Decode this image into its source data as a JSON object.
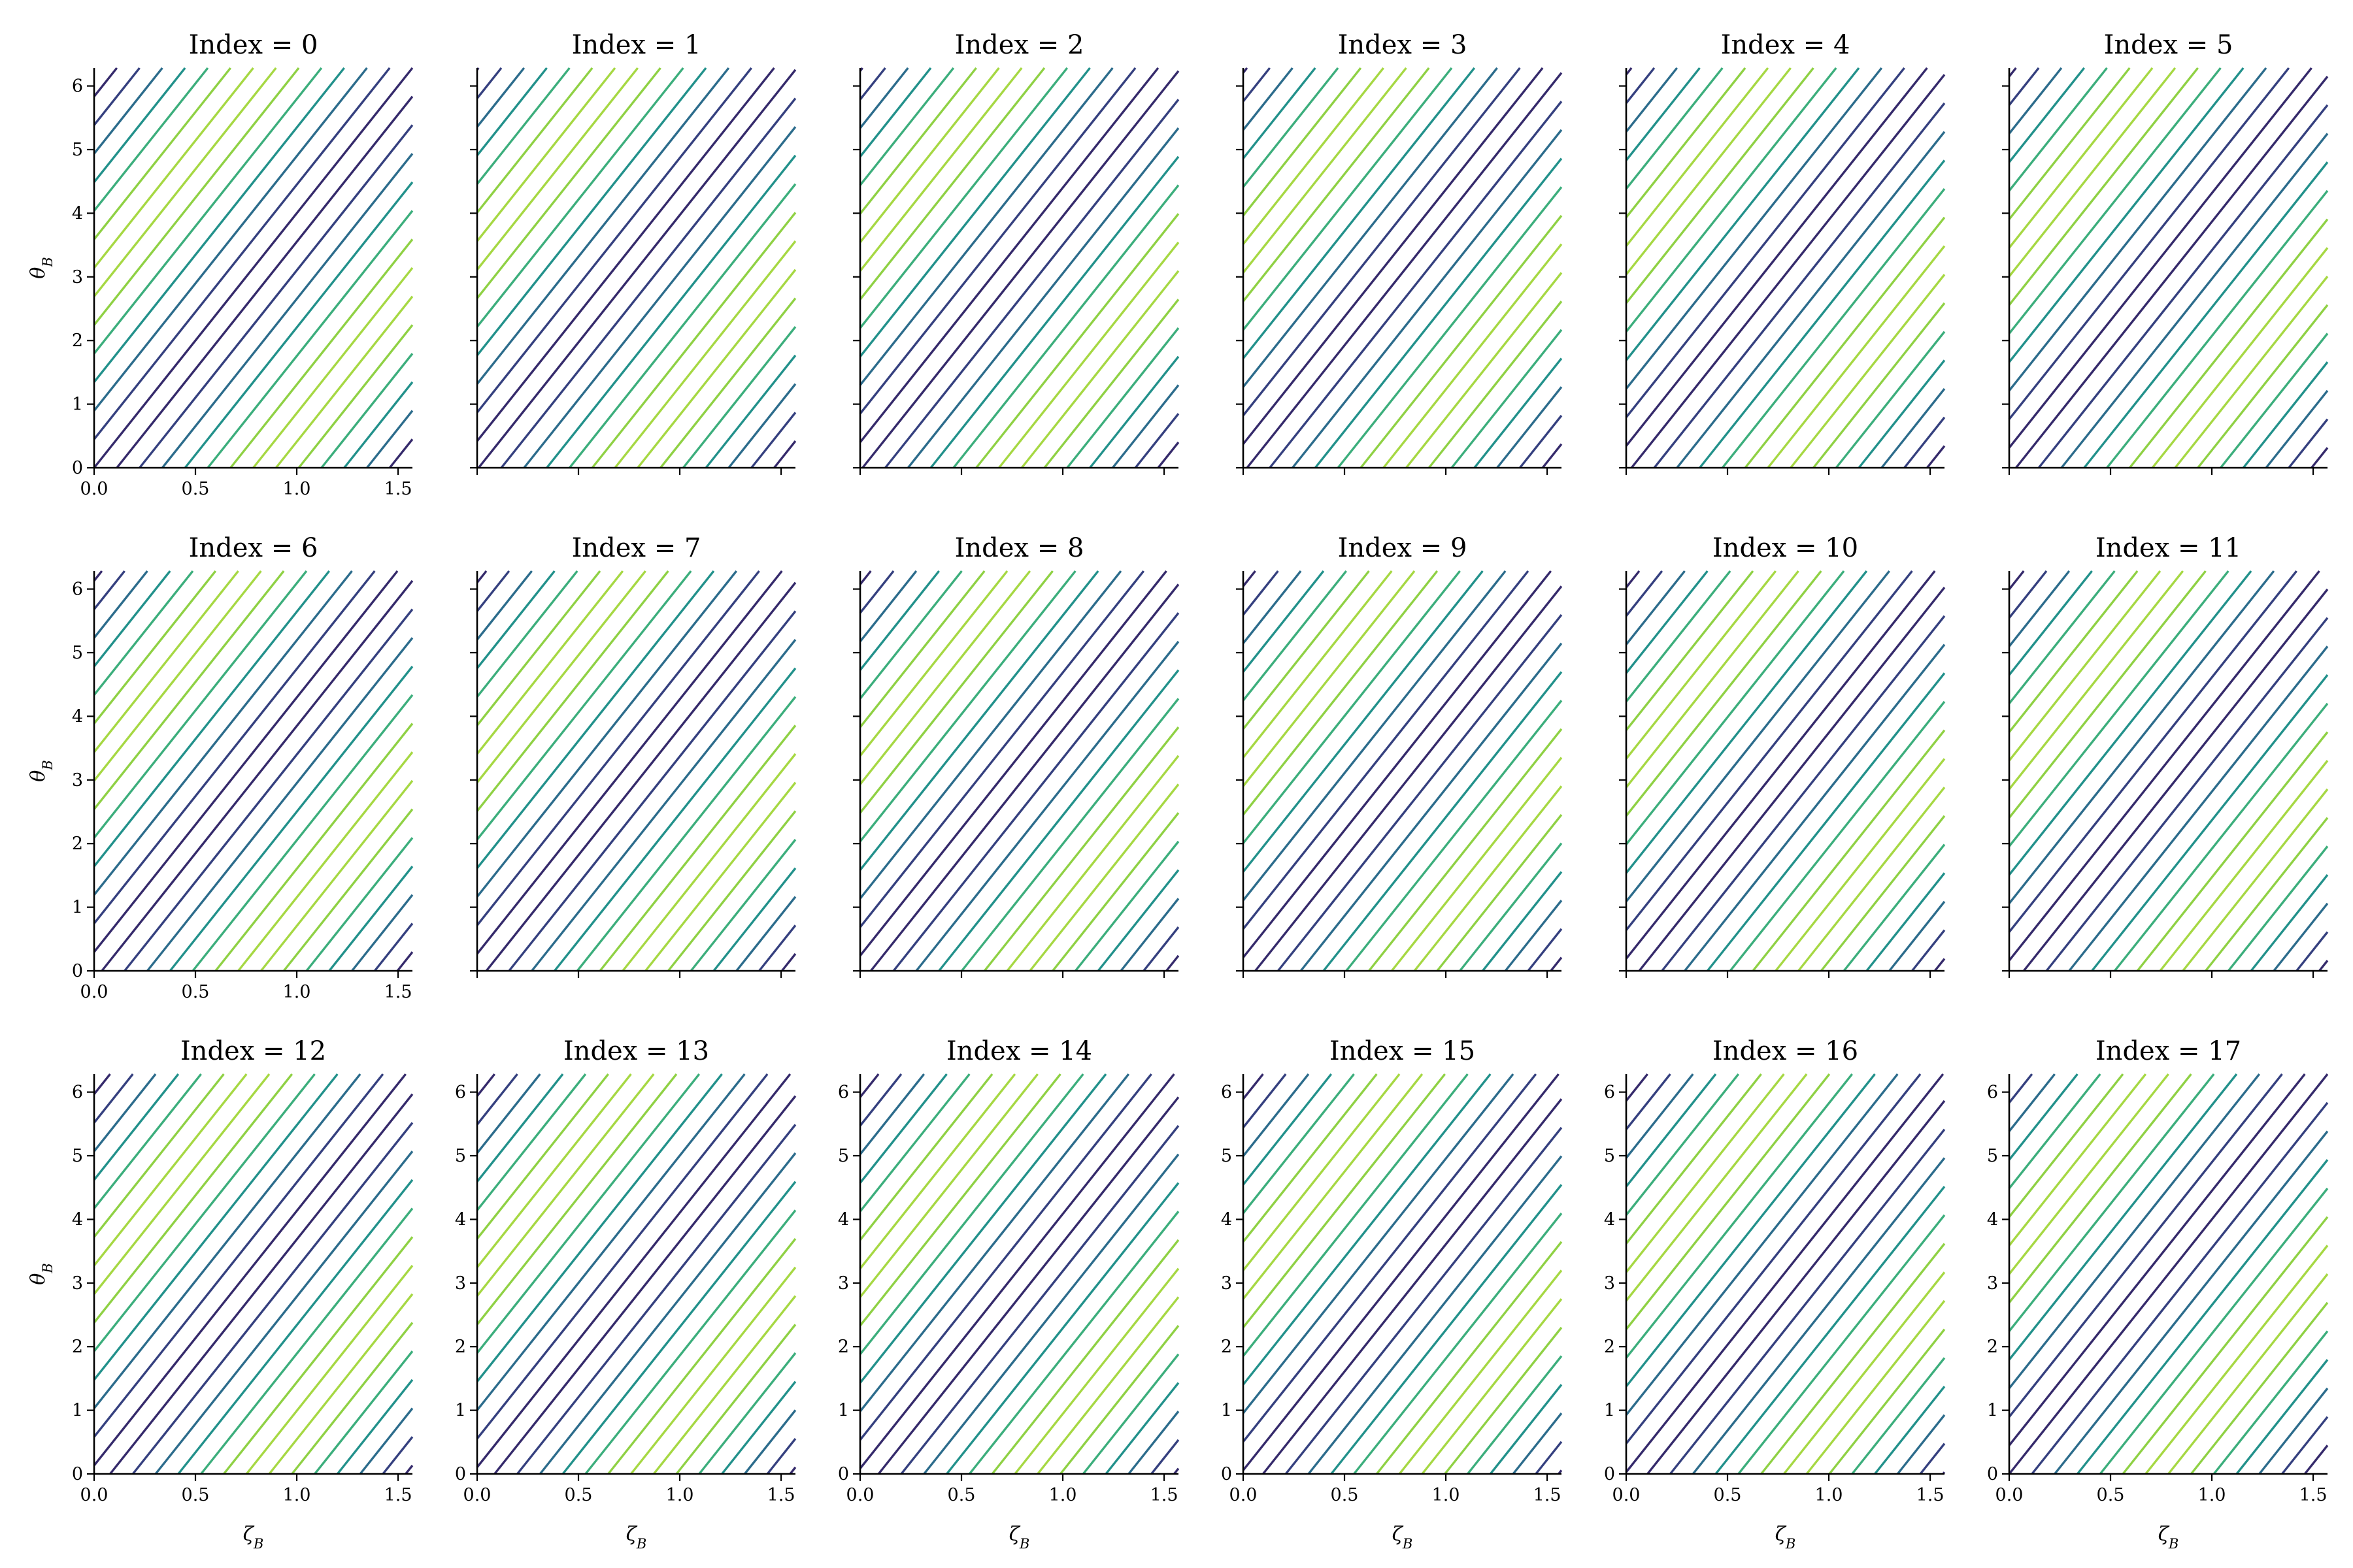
{
  "chart_data": {
    "type": "contour",
    "figure_note": "3 x 6 grid of contour-line subplots",
    "xlabel": "ζ",
    "xlabel_sub": "B",
    "ylabel": "θ",
    "ylabel_sub": "B",
    "xlim": [
      0,
      1.5708
    ],
    "ylim": [
      0,
      6.2832
    ],
    "xticks": [
      0.0,
      0.5,
      1.0,
      1.5
    ],
    "xtick_labels": [
      "0.0",
      "0.5",
      "1.0",
      "1.5"
    ],
    "yticks": [
      0,
      1,
      2,
      3,
      4,
      5,
      6
    ],
    "ytick_labels": [
      "0",
      "1",
      "2",
      "3",
      "4",
      "5",
      "6"
    ],
    "contour_slope": 4,
    "colormap_levels": [
      "#440154",
      "#3b528b",
      "#21918c",
      "#5ec962",
      "#fde725"
    ],
    "line_colors": [
      "#352a6b",
      "#35407f",
      "#2c6c8c",
      "#22918b",
      "#3cae7c",
      "#8fd144",
      "#a6d843"
    ],
    "panels": [
      {
        "title": "Index = 0",
        "phase": 0.0
      },
      {
        "title": "Index = 1",
        "phase": 0.42
      },
      {
        "title": "Index = 2",
        "phase": 0.85
      },
      {
        "title": "Index = 3",
        "phase": 1.27
      },
      {
        "title": "Index = 4",
        "phase": 1.69
      },
      {
        "title": "Index = 5",
        "phase": 2.11
      },
      {
        "title": "Index = 6",
        "phase": 2.54
      },
      {
        "title": "Index = 7",
        "phase": 2.96
      },
      {
        "title": "Index = 8",
        "phase": 3.38
      },
      {
        "title": "Index = 9",
        "phase": 3.8
      },
      {
        "title": "Index = 10",
        "phase": 4.23
      },
      {
        "title": "Index = 11",
        "phase": 4.65
      },
      {
        "title": "Index = 12",
        "phase": 5.07
      },
      {
        "title": "Index = 13",
        "phase": 5.49
      },
      {
        "title": "Index = 14",
        "phase": 5.92
      },
      {
        "title": "Index = 15",
        "phase": 6.34
      },
      {
        "title": "Index = 16",
        "phase": 6.76
      },
      {
        "title": "Index = 17",
        "phase": 7.18
      }
    ]
  }
}
